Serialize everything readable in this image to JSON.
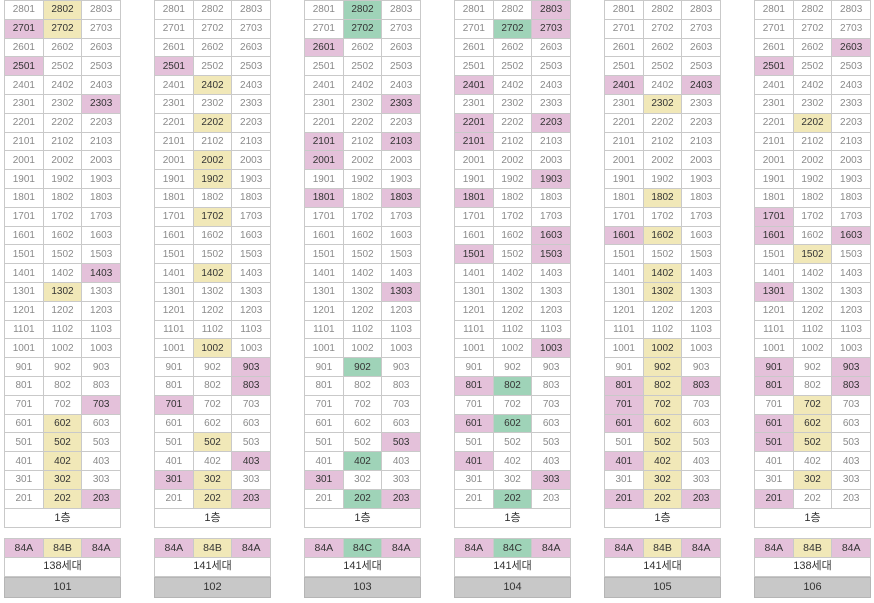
{
  "floor_label": "1층",
  "buildings": [
    {
      "number": "101",
      "households": "138세대",
      "types": [
        {
          "t": "84A",
          "c": "p"
        },
        {
          "t": "84B",
          "c": "y"
        },
        {
          "t": "84A",
          "c": "p"
        }
      ],
      "hl": {
        "2802": "y",
        "2701": "p",
        "2702": "y",
        "2501": "p",
        "2303": "p",
        "1403": "p",
        "1302": "y",
        "703": "p",
        "602": "y",
        "502": "y",
        "402": "y",
        "302": "y",
        "202": "y",
        "203": "p"
      }
    },
    {
      "number": "102",
      "households": "141세대",
      "types": [
        {
          "t": "84A",
          "c": "p"
        },
        {
          "t": "84B",
          "c": "y"
        },
        {
          "t": "84A",
          "c": "p"
        }
      ],
      "hl": {
        "2501": "p",
        "2402": "y",
        "2202": "y",
        "2002": "y",
        "1902": "y",
        "1702": "y",
        "1402": "y",
        "1002": "y",
        "903": "p",
        "803": "p",
        "701": "p",
        "502": "y",
        "403": "p",
        "301": "p",
        "302": "y",
        "202": "y",
        "203": "p"
      }
    },
    {
      "number": "103",
      "households": "141세대",
      "types": [
        {
          "t": "84A",
          "c": "p"
        },
        {
          "t": "84C",
          "c": "g"
        },
        {
          "t": "84A",
          "c": "p"
        }
      ],
      "hl": {
        "2802": "g",
        "2702": "g",
        "2601": "p",
        "2303": "p",
        "2101": "p",
        "2103": "p",
        "2001": "p",
        "1801": "p",
        "1803": "p",
        "1303": "p",
        "902": "g",
        "503": "p",
        "402": "g",
        "301": "p",
        "202": "g",
        "203": "p"
      }
    },
    {
      "number": "104",
      "households": "141세대",
      "types": [
        {
          "t": "84A",
          "c": "p"
        },
        {
          "t": "84C",
          "c": "g"
        },
        {
          "t": "84A",
          "c": "p"
        }
      ],
      "hl": {
        "2803": "p",
        "2702": "g",
        "2703": "p",
        "2401": "p",
        "2201": "p",
        "2203": "p",
        "2101": "p",
        "1903": "p",
        "1801": "p",
        "1603": "p",
        "1501": "p",
        "1503": "p",
        "1003": "p",
        "801": "p",
        "802": "g",
        "601": "p",
        "602": "g",
        "401": "p",
        "303": "p",
        "202": "g"
      }
    },
    {
      "number": "105",
      "households": "141세대",
      "types": [
        {
          "t": "84A",
          "c": "p"
        },
        {
          "t": "84B",
          "c": "y"
        },
        {
          "t": "84A",
          "c": "p"
        }
      ],
      "hl": {
        "2401": "p",
        "2403": "p",
        "2302": "y",
        "1802": "y",
        "1601": "p",
        "1602": "y",
        "1402": "y",
        "1302": "y",
        "1002": "y",
        "902": "y",
        "801": "p",
        "802": "y",
        "803": "p",
        "701": "p",
        "702": "y",
        "601": "p",
        "602": "y",
        "502": "y",
        "401": "p",
        "402": "y",
        "302": "y",
        "201": "p",
        "202": "y",
        "203": "p"
      }
    },
    {
      "number": "106",
      "households": "138세대",
      "types": [
        {
          "t": "84A",
          "c": "p"
        },
        {
          "t": "84B",
          "c": "y"
        },
        {
          "t": "84A",
          "c": "p"
        }
      ],
      "hl": {
        "2603": "p",
        "2501": "p",
        "2202": "y",
        "1701": "p",
        "1601": "p",
        "1603": "p",
        "1502": "y",
        "1301": "p",
        "901": "p",
        "903": "p",
        "801": "p",
        "803": "p",
        "702": "y",
        "601": "p",
        "602": "y",
        "501": "p",
        "502": "y",
        "302": "y",
        "201": "p"
      }
    }
  ]
}
